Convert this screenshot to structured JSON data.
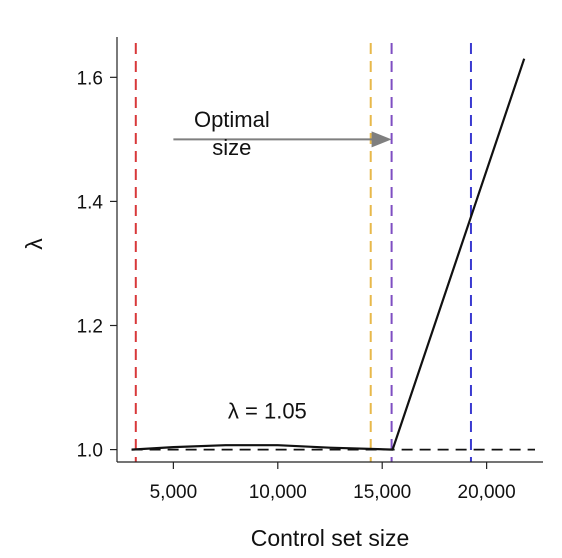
{
  "chart_data": {
    "type": "line",
    "xlabel": "Control set size",
    "ylabel": "λ",
    "xlim": [
      2300,
      22700
    ],
    "ylim": [
      0.98,
      1.665
    ],
    "x_ticks": [
      5000,
      10000,
      15000,
      20000
    ],
    "x_tick_labels": [
      "5,000",
      "10,000",
      "15,000",
      "20,000"
    ],
    "y_ticks": [
      1.0,
      1.2,
      1.4,
      1.6
    ],
    "y_tick_labels": [
      "1.0",
      "1.2",
      "1.4",
      "1.6"
    ],
    "grid": false,
    "series": [
      {
        "color": "#111111",
        "x": [
          3000,
          5000,
          7500,
          10000,
          12500,
          15500,
          21800
        ],
        "y": [
          1.0,
          1.004,
          1.007,
          1.007,
          1.003,
          1.0,
          1.63
        ]
      }
    ],
    "reference_lines": [
      {
        "orientation": "horizontal",
        "value": 1.0,
        "style": "dashed",
        "color": "#111111"
      },
      {
        "orientation": "vertical",
        "value": 3200,
        "style": "dashed",
        "color": "#d8383a"
      },
      {
        "orientation": "vertical",
        "value": 14450,
        "style": "dashed",
        "color": "#e8b84a"
      },
      {
        "orientation": "vertical",
        "value": 15450,
        "style": "dashed",
        "color": "#7e4ec2"
      },
      {
        "orientation": "vertical",
        "value": 19250,
        "style": "dashed",
        "color": "#3a3ad0"
      }
    ],
    "annotations": [
      {
        "id": "lambda_label",
        "text": "λ = 1.05",
        "x": 9500,
        "y": 1.05
      },
      {
        "id": "optimal_line1",
        "text": "Optimal",
        "x": 7800,
        "y": 1.52
      },
      {
        "id": "optimal_line2",
        "text": "size",
        "x": 7800,
        "y": 1.475
      }
    ],
    "arrow": {
      "from_x": 5000,
      "to_x": 15450,
      "y": 1.5,
      "color": "#7f7f7f"
    }
  }
}
